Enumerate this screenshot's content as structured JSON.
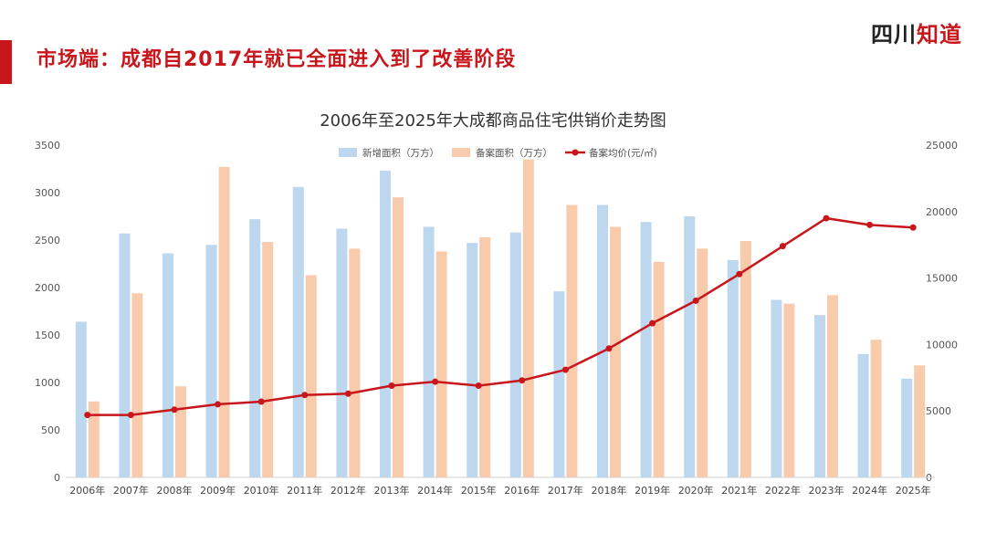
{
  "page": {
    "headline": "市场端：成都自2017年就已全面进入到了改善阶段",
    "logo": {
      "part1": "四川",
      "part2": "知道"
    },
    "accent_color": "#c8171c"
  },
  "chart_data": {
    "type": "bar+line",
    "title": "2006年至2025年大成都商品住宅供销价走势图",
    "categories": [
      "2006年",
      "2007年",
      "2008年",
      "2009年",
      "2010年",
      "2011年",
      "2012年",
      "2013年",
      "2014年",
      "2015年",
      "2016年",
      "2017年",
      "2018年",
      "2019年",
      "2020年",
      "2021年",
      "2022年",
      "2023年",
      "2024年",
      "2025年"
    ],
    "left_axis": {
      "min": 0,
      "max": 3500,
      "ticks": [
        0,
        500,
        1000,
        1500,
        2000,
        2500,
        3000,
        3500
      ]
    },
    "right_axis": {
      "min": 0,
      "max": 25000,
      "ticks": [
        0,
        5000,
        10000,
        15000,
        20000,
        25000
      ]
    },
    "series": [
      {
        "name": "新增面积（万方）",
        "type": "bar",
        "axis": "left",
        "color": "#bdd7ee",
        "values": [
          1640,
          2570,
          2360,
          2450,
          2720,
          3060,
          2620,
          3230,
          2640,
          2470,
          2580,
          1960,
          2870,
          2690,
          2750,
          2290,
          1870,
          1710,
          1300,
          1040
        ]
      },
      {
        "name": "备案面积（万方）",
        "type": "bar",
        "axis": "left",
        "color": "#f8cbad",
        "values": [
          800,
          1940,
          960,
          3270,
          2480,
          2130,
          2410,
          2950,
          2380,
          2530,
          3350,
          2870,
          2640,
          2270,
          2410,
          2490,
          1830,
          1920,
          1450,
          1180
        ]
      },
      {
        "name": "备案均价(元/㎡)",
        "type": "line",
        "axis": "right",
        "color": "#c8171c",
        "values": [
          4700,
          4700,
          5100,
          5500,
          5700,
          6200,
          6300,
          6900,
          7200,
          6900,
          7300,
          8100,
          9700,
          11600,
          13300,
          15300,
          17400,
          19500,
          19000,
          18800
        ]
      }
    ],
    "legend_position": "top-center",
    "grid": false
  }
}
